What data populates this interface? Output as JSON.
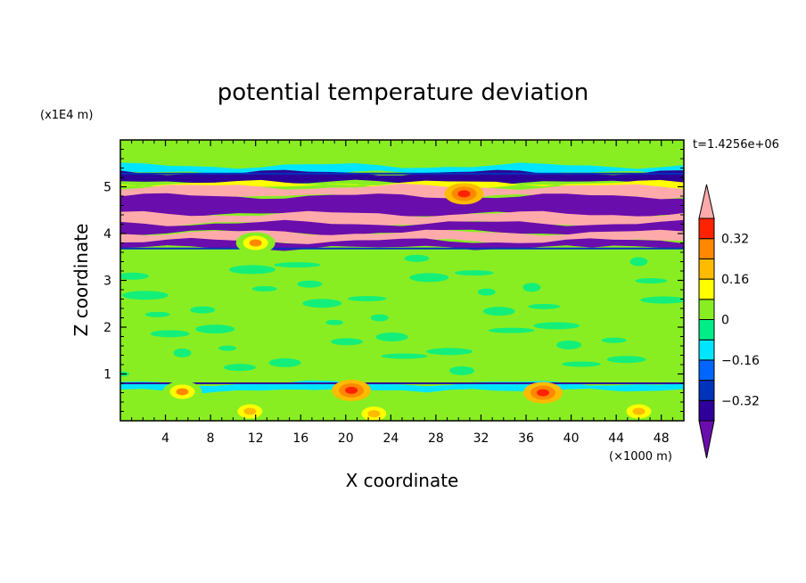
{
  "chart_data": {
    "type": "heatmap",
    "title": "potential temperature deviation",
    "xlabel": "X coordinate",
    "ylabel": "Z coordinate",
    "x_unit_label": "(×1000 m)",
    "y_unit_label": "(x1E4 m)",
    "time_label": "t=1.4256e+06",
    "xlim": [
      0,
      50
    ],
    "ylim": [
      0,
      6
    ],
    "x_ticks": [
      4,
      8,
      12,
      16,
      20,
      24,
      28,
      32,
      36,
      40,
      44,
      48
    ],
    "y_ticks": [
      1,
      2,
      3,
      4,
      5
    ],
    "colorbar": {
      "levels": [
        -0.48,
        -0.4,
        -0.32,
        -0.24,
        -0.16,
        -0.08,
        0,
        0.08,
        0.16,
        0.24,
        0.32,
        0.4,
        0.48
      ],
      "colors": [
        "#6a0dad",
        "#2e0099",
        "#0033bb",
        "#0066ff",
        "#00e5ff",
        "#00ee88",
        "#88ee22",
        "#ffff00",
        "#ffbb00",
        "#ff8800",
        "#ff2200",
        "#ffaaaa"
      ],
      "labels": [
        {
          "value": 0.32,
          "text": "0.32"
        },
        {
          "value": 0.16,
          "text": "0.16"
        },
        {
          "value": 0,
          "text": "0"
        },
        {
          "value": -0.16,
          "text": "−0.16"
        },
        {
          "value": -0.32,
          "text": "−0.32"
        }
      ]
    },
    "background_color": "#88ee22",
    "layers": [
      {
        "name": "upper-green",
        "z0": 5.45,
        "z1": 6.0,
        "color": "#88ee22"
      },
      {
        "name": "band-cyan-top",
        "z0": 5.28,
        "z1": 5.45,
        "color": "#00e5ff"
      },
      {
        "name": "band-purple-1",
        "z0": 5.08,
        "z1": 5.3,
        "color": "#2e0099"
      },
      {
        "name": "band-yellow",
        "z0": 5.0,
        "z1": 5.08,
        "color": "#ffff00"
      },
      {
        "name": "band-pink-1",
        "z0": 4.78,
        "z1": 5.0,
        "color": "#ffaaaa"
      },
      {
        "name": "band-violet-1",
        "z0": 4.4,
        "z1": 4.8,
        "color": "#6a0dad"
      },
      {
        "name": "band-pink-2",
        "z0": 4.2,
        "z1": 4.42,
        "color": "#ffaaaa"
      },
      {
        "name": "band-violet-2",
        "z0": 4.02,
        "z1": 4.22,
        "color": "#6a0dad"
      },
      {
        "name": "band-pink-3",
        "z0": 3.82,
        "z1": 4.02,
        "color": "#ffaaaa"
      },
      {
        "name": "band-violet-3",
        "z0": 3.68,
        "z1": 3.84,
        "color": "#6a0dad"
      },
      {
        "name": "band-green-mid",
        "z0": 0.85,
        "z1": 3.68,
        "color": "#88ee22"
      },
      {
        "name": "band-cyan-low",
        "z0": 0.62,
        "z1": 0.8,
        "color": "#00e5ff"
      },
      {
        "name": "surface-green",
        "z0": 0.0,
        "z1": 0.62,
        "color": "#88ee22"
      }
    ],
    "warm_blobs": [
      {
        "x": 5.5,
        "z": 0.62,
        "level": 0.24
      },
      {
        "x": 11.5,
        "z": 0.2,
        "level": 0.16
      },
      {
        "x": 20.5,
        "z": 0.65,
        "level": 0.32
      },
      {
        "x": 22.5,
        "z": 0.15,
        "level": 0.16
      },
      {
        "x": 37.5,
        "z": 0.6,
        "level": 0.32
      },
      {
        "x": 46.0,
        "z": 0.2,
        "level": 0.16
      },
      {
        "x": 30.5,
        "z": 4.85,
        "level": 0.32
      },
      {
        "x": 12.0,
        "z": 3.8,
        "level": 0.24
      }
    ]
  }
}
